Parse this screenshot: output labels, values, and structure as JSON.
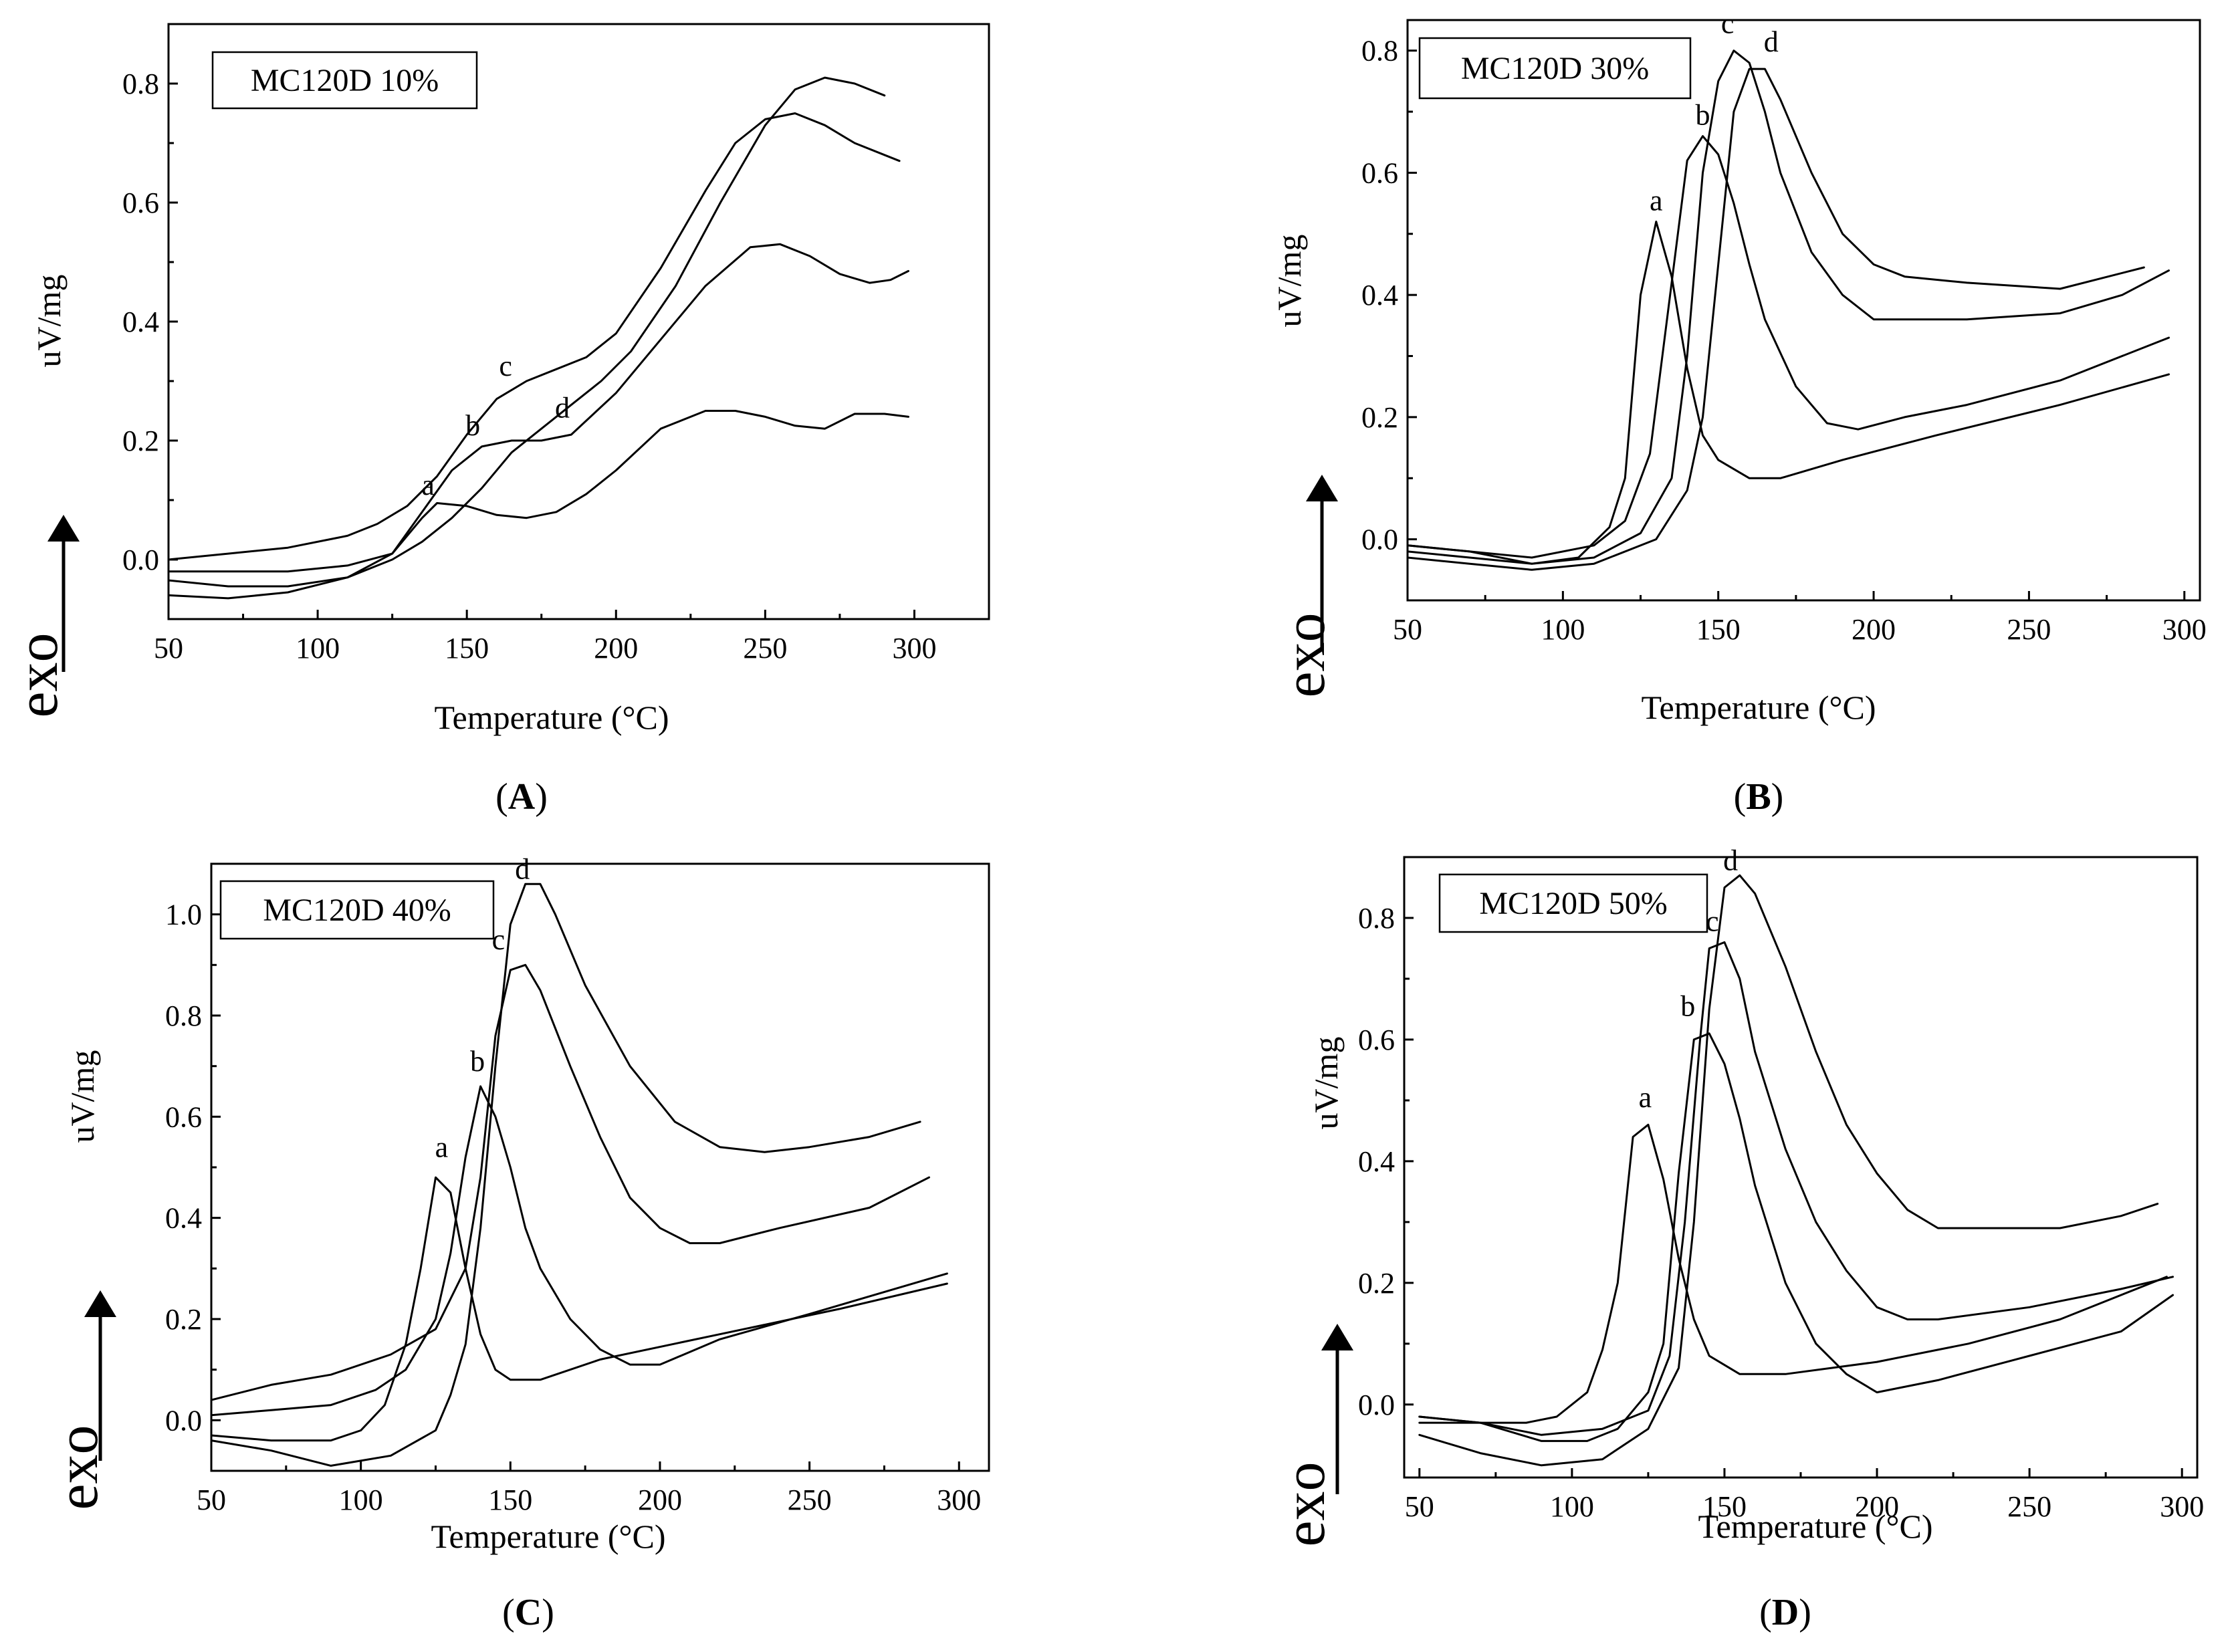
{
  "chart_data": [
    {
      "panel_id": "A",
      "type": "line",
      "caption_letter": "A",
      "legend": "MC120D 10%",
      "xlabel": "Temperature (°C)",
      "ylabel": "uV/mg",
      "exo_label": "exo",
      "xlim": [
        50,
        325
      ],
      "ylim": [
        -0.1,
        0.9
      ],
      "xticks": [
        50,
        100,
        150,
        200,
        250,
        300
      ],
      "yticks": [
        0.0,
        0.2,
        0.4,
        0.6,
        0.8
      ],
      "series": [
        {
          "name": "a",
          "label_at": [
            137,
            0.1
          ],
          "x": [
            50,
            70,
            90,
            110,
            125,
            135,
            140,
            150,
            160,
            170,
            180,
            190,
            200,
            215,
            230,
            240,
            250,
            260,
            270,
            280,
            290,
            298
          ],
          "y": [
            -0.02,
            -0.02,
            -0.02,
            -0.01,
            0.01,
            0.07,
            0.095,
            0.09,
            0.075,
            0.07,
            0.08,
            0.11,
            0.15,
            0.22,
            0.25,
            0.25,
            0.24,
            0.225,
            0.22,
            0.245,
            0.245,
            0.24
          ]
        },
        {
          "name": "b",
          "label_at": [
            152,
            0.2
          ],
          "x": [
            50,
            70,
            90,
            110,
            125,
            135,
            145,
            155,
            165,
            175,
            185,
            200,
            215,
            230,
            245,
            255,
            265,
            275,
            285,
            292,
            298
          ],
          "y": [
            -0.035,
            -0.045,
            -0.045,
            -0.03,
            0.01,
            0.08,
            0.15,
            0.19,
            0.2,
            0.2,
            0.21,
            0.28,
            0.37,
            0.46,
            0.525,
            0.53,
            0.51,
            0.48,
            0.465,
            0.47,
            0.485
          ]
        },
        {
          "name": "c",
          "label_at": [
            163,
            0.3
          ],
          "x": [
            50,
            70,
            90,
            110,
            120,
            130,
            140,
            150,
            160,
            170,
            180,
            190,
            200,
            215,
            230,
            240,
            250,
            260,
            270,
            280,
            290,
            295
          ],
          "y": [
            0.0,
            0.01,
            0.02,
            0.04,
            0.06,
            0.09,
            0.14,
            0.21,
            0.27,
            0.3,
            0.32,
            0.34,
            0.38,
            0.49,
            0.62,
            0.7,
            0.74,
            0.75,
            0.73,
            0.7,
            0.68,
            0.67
          ]
        },
        {
          "name": "d",
          "label_at": [
            182,
            0.23
          ],
          "x": [
            50,
            70,
            90,
            110,
            125,
            135,
            145,
            155,
            165,
            175,
            185,
            195,
            205,
            220,
            235,
            250,
            260,
            270,
            280,
            290
          ],
          "y": [
            -0.06,
            -0.065,
            -0.055,
            -0.03,
            0.0,
            0.03,
            0.07,
            0.12,
            0.18,
            0.22,
            0.26,
            0.3,
            0.35,
            0.46,
            0.6,
            0.73,
            0.79,
            0.81,
            0.8,
            0.78
          ]
        }
      ]
    },
    {
      "panel_id": "B",
      "type": "line",
      "caption_letter": "B",
      "legend": "MC120D 30%",
      "xlabel": "Temperature (°C)",
      "ylabel": "uV/mg",
      "exo_label": "exo",
      "xlim": [
        50,
        305
      ],
      "ylim": [
        -0.1,
        0.85
      ],
      "xticks": [
        50,
        100,
        150,
        200,
        250,
        300
      ],
      "yticks": [
        0.0,
        0.2,
        0.4,
        0.6,
        0.8
      ],
      "series": [
        {
          "name": "a",
          "label_at": [
            130,
            0.53
          ],
          "x": [
            50,
            70,
            90,
            105,
            115,
            120,
            125,
            130,
            135,
            140,
            145,
            150,
            160,
            170,
            190,
            220,
            260,
            295
          ],
          "y": [
            -0.02,
            -0.03,
            -0.04,
            -0.03,
            0.02,
            0.1,
            0.4,
            0.52,
            0.43,
            0.28,
            0.17,
            0.13,
            0.1,
            0.1,
            0.13,
            0.17,
            0.22,
            0.27
          ]
        },
        {
          "name": "b",
          "label_at": [
            145,
            0.67
          ],
          "x": [
            50,
            70,
            90,
            110,
            120,
            128,
            135,
            140,
            145,
            150,
            155,
            160,
            165,
            175,
            185,
            195,
            210,
            230,
            260,
            295
          ],
          "y": [
            -0.01,
            -0.02,
            -0.03,
            -0.01,
            0.03,
            0.14,
            0.42,
            0.62,
            0.66,
            0.63,
            0.55,
            0.45,
            0.36,
            0.25,
            0.19,
            0.18,
            0.2,
            0.22,
            0.26,
            0.33
          ]
        },
        {
          "name": "c",
          "label_at": [
            153,
            0.82
          ],
          "x": [
            50,
            70,
            90,
            110,
            125,
            135,
            140,
            145,
            150,
            155,
            160,
            165,
            170,
            180,
            190,
            200,
            210,
            230,
            260,
            280,
            295
          ],
          "y": [
            -0.01,
            -0.02,
            -0.04,
            -0.03,
            0.01,
            0.1,
            0.3,
            0.6,
            0.75,
            0.8,
            0.78,
            0.7,
            0.6,
            0.47,
            0.4,
            0.36,
            0.36,
            0.36,
            0.37,
            0.4,
            0.44
          ]
        },
        {
          "name": "d",
          "label_at": [
            167,
            0.79
          ],
          "x": [
            50,
            70,
            90,
            110,
            130,
            140,
            145,
            150,
            155,
            160,
            165,
            170,
            180,
            190,
            200,
            210,
            230,
            260,
            287
          ],
          "y": [
            -0.03,
            -0.04,
            -0.05,
            -0.04,
            0.0,
            0.08,
            0.2,
            0.45,
            0.7,
            0.77,
            0.77,
            0.72,
            0.6,
            0.5,
            0.45,
            0.43,
            0.42,
            0.41,
            0.445
          ]
        }
      ]
    },
    {
      "panel_id": "C",
      "type": "line",
      "caption_letter": "C",
      "legend": "MC120D 40%",
      "xlabel": "Temperature (°C)",
      "ylabel": "uV/mg",
      "exo_label": "exo",
      "xlim": [
        50,
        310
      ],
      "ylim": [
        -0.1,
        1.1
      ],
      "xticks": [
        50,
        100,
        150,
        200,
        250,
        300
      ],
      "yticks": [
        0.0,
        0.2,
        0.4,
        0.6,
        0.8,
        1.0
      ],
      "series": [
        {
          "name": "a",
          "label_at": [
            127,
            0.51
          ],
          "x": [
            50,
            70,
            90,
            100,
            108,
            115,
            120,
            125,
            130,
            135,
            140,
            145,
            150,
            160,
            180,
            220,
            260,
            296
          ],
          "y": [
            -0.03,
            -0.04,
            -0.04,
            -0.02,
            0.03,
            0.15,
            0.3,
            0.48,
            0.45,
            0.3,
            0.17,
            0.1,
            0.08,
            0.08,
            0.12,
            0.17,
            0.22,
            0.27
          ]
        },
        {
          "name": "b",
          "label_at": [
            139,
            0.68
          ],
          "x": [
            50,
            70,
            90,
            105,
            115,
            125,
            130,
            135,
            140,
            145,
            150,
            155,
            160,
            170,
            180,
            190,
            200,
            220,
            250,
            296
          ],
          "y": [
            0.01,
            0.02,
            0.03,
            0.06,
            0.1,
            0.2,
            0.33,
            0.52,
            0.66,
            0.6,
            0.5,
            0.38,
            0.3,
            0.2,
            0.14,
            0.11,
            0.11,
            0.16,
            0.21,
            0.29
          ]
        },
        {
          "name": "c",
          "label_at": [
            146,
            0.92
          ],
          "x": [
            50,
            70,
            90,
            110,
            125,
            135,
            140,
            145,
            150,
            155,
            160,
            170,
            180,
            190,
            200,
            210,
            220,
            240,
            270,
            290
          ],
          "y": [
            0.04,
            0.07,
            0.09,
            0.13,
            0.18,
            0.3,
            0.48,
            0.76,
            0.89,
            0.9,
            0.85,
            0.7,
            0.56,
            0.44,
            0.38,
            0.35,
            0.35,
            0.38,
            0.42,
            0.48
          ]
        },
        {
          "name": "d",
          "label_at": [
            154,
            1.06
          ],
          "x": [
            50,
            70,
            90,
            110,
            125,
            130,
            135,
            140,
            145,
            150,
            155,
            160,
            165,
            175,
            190,
            205,
            220,
            235,
            250,
            270,
            287
          ],
          "y": [
            -0.04,
            -0.06,
            -0.09,
            -0.07,
            -0.02,
            0.05,
            0.15,
            0.38,
            0.7,
            0.98,
            1.06,
            1.06,
            1.0,
            0.86,
            0.7,
            0.59,
            0.54,
            0.53,
            0.54,
            0.56,
            0.59
          ]
        }
      ]
    },
    {
      "panel_id": "D",
      "type": "line",
      "caption_letter": "D",
      "legend": "MC120D 50%",
      "xlabel": "Temperature (°C)",
      "ylabel": "uV/mg",
      "exo_label": "exo",
      "xlim": [
        45,
        305
      ],
      "ylim": [
        -0.12,
        0.9
      ],
      "xticks": [
        50,
        100,
        150,
        200,
        250,
        300
      ],
      "yticks": [
        0.0,
        0.2,
        0.4,
        0.6,
        0.8
      ],
      "series": [
        {
          "name": "a",
          "label_at": [
            124,
            0.48
          ],
          "x": [
            50,
            70,
            85,
            95,
            105,
            110,
            115,
            120,
            125,
            130,
            135,
            140,
            145,
            155,
            170,
            200,
            230,
            260,
            295
          ],
          "y": [
            -0.02,
            -0.03,
            -0.03,
            -0.02,
            0.02,
            0.09,
            0.2,
            0.44,
            0.46,
            0.37,
            0.24,
            0.14,
            0.08,
            0.05,
            0.05,
            0.07,
            0.1,
            0.14,
            0.21
          ]
        },
        {
          "name": "b",
          "label_at": [
            138,
            0.63
          ],
          "x": [
            50,
            70,
            90,
            105,
            115,
            125,
            130,
            135,
            140,
            145,
            150,
            155,
            160,
            170,
            180,
            190,
            200,
            220,
            250,
            280,
            297
          ],
          "y": [
            -0.02,
            -0.03,
            -0.06,
            -0.06,
            -0.04,
            0.02,
            0.1,
            0.38,
            0.6,
            0.61,
            0.56,
            0.47,
            0.36,
            0.2,
            0.1,
            0.05,
            0.02,
            0.04,
            0.08,
            0.12,
            0.18
          ]
        },
        {
          "name": "c",
          "label_at": [
            146,
            0.77
          ],
          "x": [
            50,
            70,
            90,
            110,
            125,
            132,
            137,
            142,
            145,
            150,
            155,
            160,
            170,
            180,
            190,
            200,
            210,
            220,
            250,
            280,
            297
          ],
          "y": [
            -0.03,
            -0.03,
            -0.05,
            -0.04,
            -0.01,
            0.08,
            0.3,
            0.6,
            0.75,
            0.76,
            0.7,
            0.58,
            0.42,
            0.3,
            0.22,
            0.16,
            0.14,
            0.14,
            0.16,
            0.19,
            0.21
          ]
        },
        {
          "name": "d",
          "label_at": [
            152,
            0.87
          ],
          "x": [
            50,
            70,
            90,
            110,
            125,
            135,
            140,
            145,
            150,
            155,
            160,
            170,
            180,
            190,
            200,
            210,
            220,
            240,
            260,
            280,
            292
          ],
          "y": [
            -0.05,
            -0.08,
            -0.1,
            -0.09,
            -0.04,
            0.06,
            0.3,
            0.65,
            0.85,
            0.87,
            0.84,
            0.72,
            0.58,
            0.46,
            0.38,
            0.32,
            0.29,
            0.29,
            0.29,
            0.31,
            0.33
          ]
        }
      ]
    }
  ]
}
